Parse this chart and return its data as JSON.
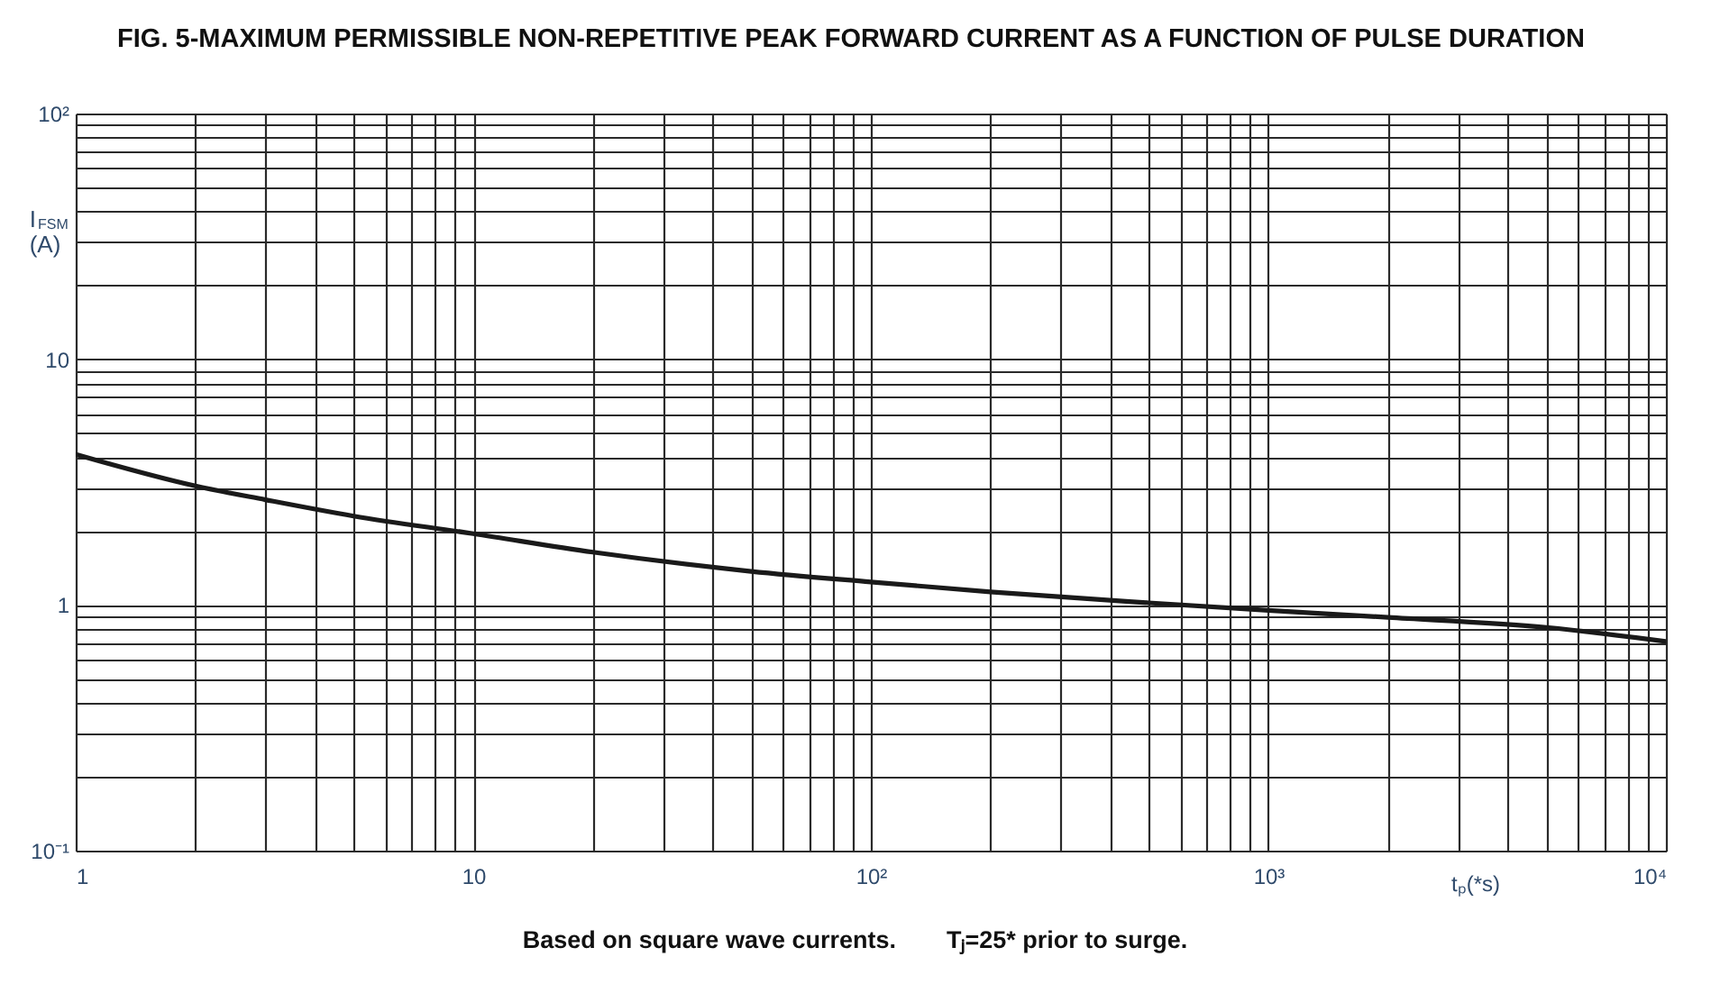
{
  "chart_data": {
    "type": "line",
    "title": "FIG. 5-MAXIMUM PERMISSIBLE NON-REPETITIVE PEAK FORWARD CURRENT AS A FUNCTION OF PULSE DURATION",
    "xlabel": "tₚ(*s)",
    "ylabel": "I$_{FSM}$ (A)",
    "annotations": [
      "Based on square wave currents.",
      "Tⱼ=25* prior to surge."
    ],
    "log": "xy",
    "x": [
      1,
      2,
      3,
      5,
      10,
      20,
      50,
      100,
      200,
      500,
      1000,
      2000,
      5000,
      10000
    ],
    "series": [
      {
        "color": "#1a1a1a",
        "values": [
          4.1,
          3.05,
          2.68,
          2.3,
          1.95,
          1.64,
          1.37,
          1.24,
          1.13,
          1.02,
          0.95,
          0.89,
          0.81,
          0.71
        ]
      }
    ],
    "xlim": [
      1,
      10000
    ],
    "ylim": [
      0.1,
      100
    ],
    "xticks": [
      1,
      {
        "value": 2,
        "label": null
      },
      {
        "value": 3,
        "label": null
      },
      {
        "value": 4,
        "label": null
      },
      {
        "value": 5,
        "label": null
      },
      {
        "value": 6,
        "label": null
      },
      {
        "value": 7,
        "label": null
      },
      {
        "value": 8,
        "label": null
      },
      {
        "value": 9,
        "label": null
      },
      10,
      {
        "value": 20,
        "label": null
      },
      {
        "value": 30,
        "label": null
      },
      {
        "value": 40,
        "label": null
      },
      {
        "value": 50,
        "label": null
      },
      {
        "value": 60,
        "label": null
      },
      {
        "value": 70,
        "label": null
      },
      {
        "value": 80,
        "label": null
      },
      {
        "value": 90,
        "label": null
      },
      {
        "value": 100,
        "label": "10²"
      },
      {
        "value": 200,
        "label": null
      },
      {
        "value": 300,
        "label": null
      },
      {
        "value": 400,
        "label": null
      },
      {
        "value": 500,
        "label": null
      },
      {
        "value": 600,
        "label": null
      },
      {
        "value": 700,
        "label": null
      },
      {
        "value": 800,
        "label": null
      },
      {
        "value": 900,
        "label": null
      },
      {
        "value": 1000,
        "label": "10³"
      },
      {
        "value": 2000,
        "label": null
      },
      {
        "value": 3000,
        "label": null
      },
      {
        "value": 4000,
        "label": null
      },
      {
        "value": 5000,
        "label": null
      },
      {
        "value": 6000,
        "label": null
      },
      {
        "value": 7000,
        "label": null
      },
      {
        "value": 8000,
        "label": null
      },
      {
        "value": 9000,
        "label": null
      },
      {
        "value": 10000,
        "label": "10⁴"
      }
    ],
    "yticks": [
      {
        "value": 0.1,
        "label": "10⁻¹"
      },
      {
        "value": 0.2,
        "label": null
      },
      {
        "value": 0.3,
        "label": null
      },
      {
        "value": 0.4,
        "label": null
      },
      {
        "value": 0.5,
        "label": null
      },
      {
        "value": 0.6,
        "label": null
      },
      {
        "value": 0.7,
        "label": null
      },
      {
        "value": 0.8,
        "label": null
      },
      {
        "value": 0.9,
        "label": null
      },
      1,
      {
        "value": 2,
        "label": null
      },
      {
        "value": 3,
        "label": null
      },
      {
        "value": 4,
        "label": null
      },
      {
        "value": 5,
        "label": null
      },
      {
        "value": 6,
        "label": null
      },
      {
        "value": 7,
        "label": null
      },
      {
        "value": 8,
        "label": null
      },
      {
        "value": 9,
        "label": null
      },
      10,
      {
        "value": 20,
        "label": null
      },
      {
        "value": 30,
        "label": null
      },
      {
        "value": 40,
        "label": null
      },
      {
        "value": 50,
        "label": null
      },
      {
        "value": 60,
        "label": null
      },
      {
        "value": 70,
        "label": null
      },
      {
        "value": 80,
        "label": null
      },
      {
        "value": 90,
        "label": null
      },
      {
        "value": 100,
        "label": "10²"
      }
    ],
    "grid": true,
    "line_style": "solid"
  }
}
